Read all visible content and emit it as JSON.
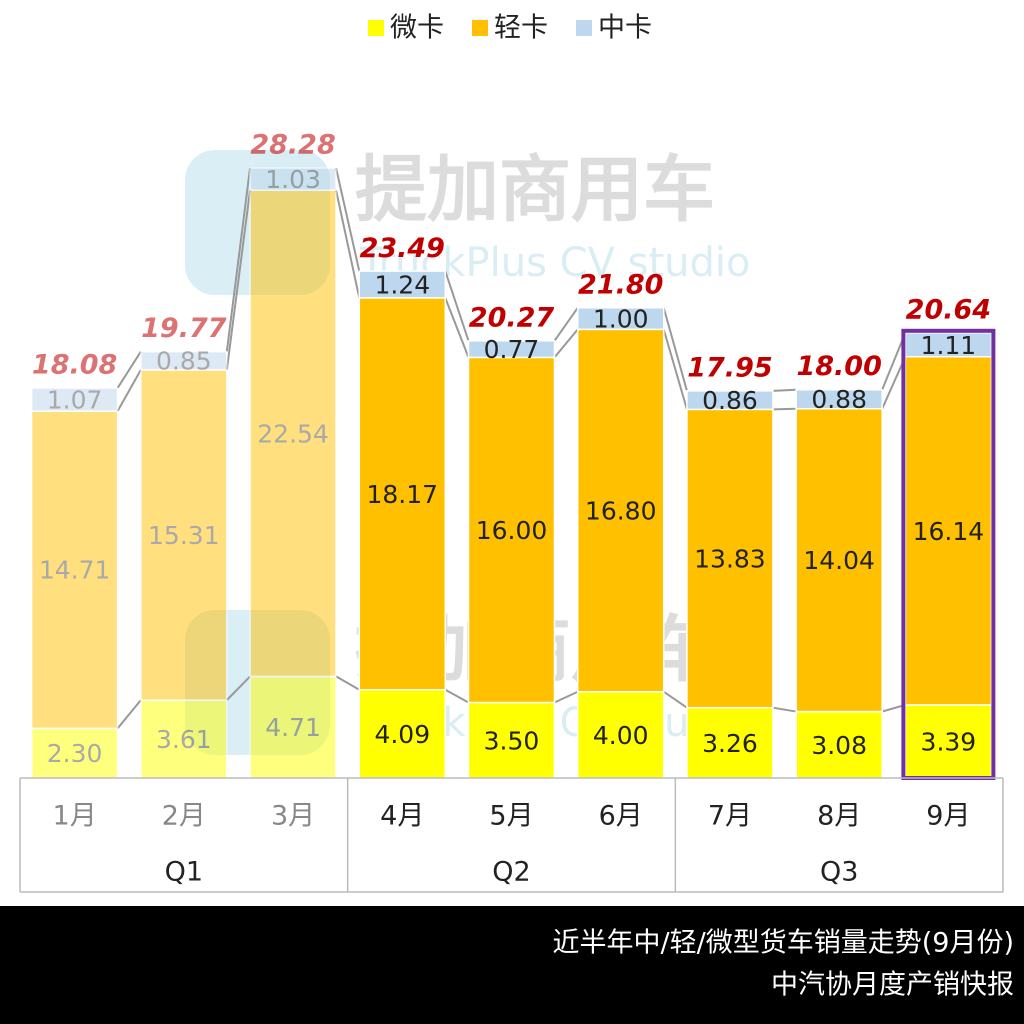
{
  "chart_data": {
    "type": "stacked_bar",
    "categories": [
      "1月",
      "2月",
      "3月",
      "4月",
      "5月",
      "6月",
      "7月",
      "8月",
      "9月"
    ],
    "groups": [
      {
        "name": "Q1",
        "months": [
          "1月",
          "2月",
          "3月"
        ]
      },
      {
        "name": "Q2",
        "months": [
          "4月",
          "5月",
          "6月"
        ]
      },
      {
        "name": "Q3",
        "months": [
          "7月",
          "8月",
          "9月"
        ]
      }
    ],
    "series": [
      {
        "name": "微卡",
        "color": "#ffff00",
        "values": [
          2.3,
          3.61,
          4.71,
          4.09,
          3.5,
          4.0,
          3.26,
          3.08,
          3.39
        ],
        "value_labels": [
          "2.30",
          "3.61",
          "4.71",
          "4.09",
          "3.50",
          "4.00",
          "3.26",
          "3.08",
          "3.39"
        ]
      },
      {
        "name": "轻卡",
        "color": "#ffc000",
        "values": [
          14.71,
          15.31,
          22.54,
          18.17,
          16.0,
          16.8,
          13.83,
          14.04,
          16.14
        ],
        "value_labels": [
          "14.71",
          "15.31",
          "22.54",
          "18.17",
          "16.00",
          "16.80",
          "13.83",
          "14.04",
          "16.14"
        ]
      },
      {
        "name": "中卡",
        "color": "#bdd7ee",
        "values": [
          1.07,
          0.85,
          1.03,
          1.24,
          0.77,
          1.0,
          0.86,
          0.88,
          1.11
        ],
        "value_labels": [
          "1.07",
          "0.85",
          "1.03",
          "1.24",
          "0.77",
          "1.00",
          "0.86",
          "0.88",
          "1.11"
        ]
      }
    ],
    "totals": [
      18.08,
      19.77,
      28.28,
      23.49,
      20.27,
      21.8,
      17.95,
      18.0,
      20.64
    ],
    "total_labels": [
      "18.08",
      "19.77",
      "28.28",
      "23.49",
      "20.27",
      "21.80",
      "17.95",
      "18.00",
      "20.64"
    ],
    "total_color": "#c00000",
    "faded_group": "Q1",
    "highlight_category": "9月",
    "highlight_color": "#7030a0",
    "legend": "top",
    "watermark": {
      "title": "提加商用车",
      "subtitle": "TruckPlus CV studio"
    },
    "footer": [
      "近半年中/轻/微型货车销量走势(9月份)",
      "中汽协月度产销快报"
    ]
  }
}
